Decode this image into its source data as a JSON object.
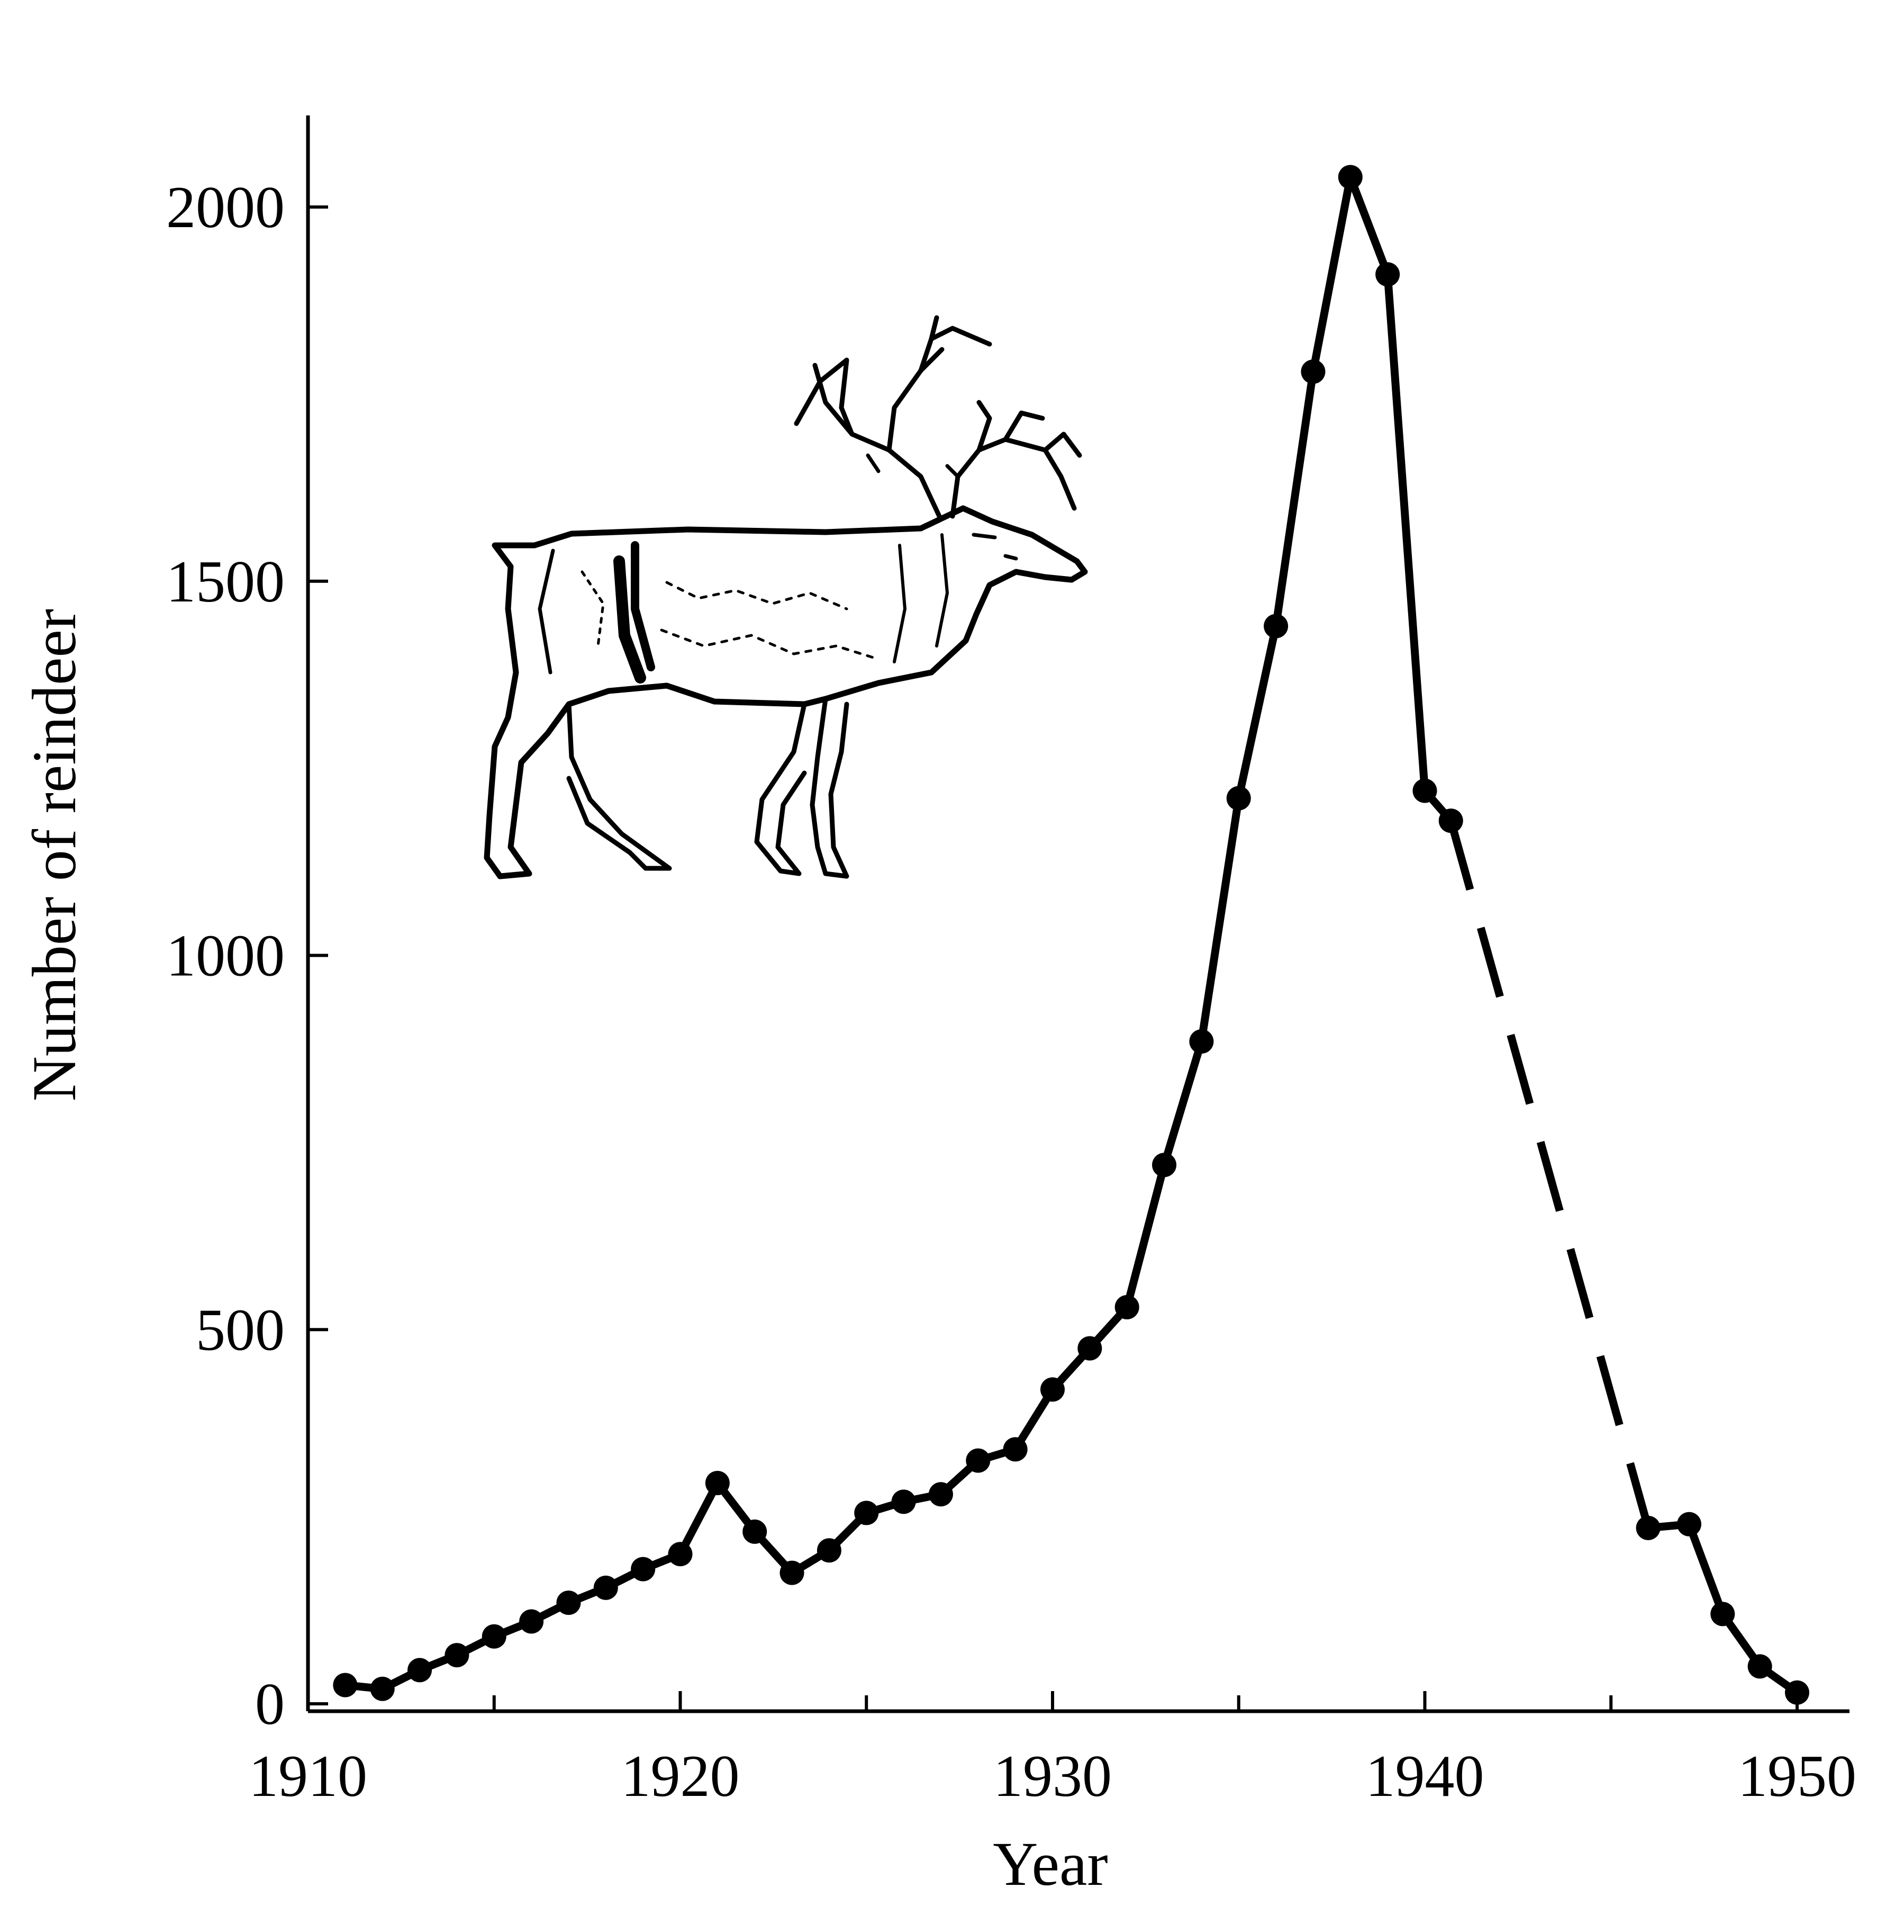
{
  "chart_data": {
    "type": "line",
    "title": "",
    "xlabel": "Year",
    "ylabel": "Number of reindeer",
    "xlim": [
      1910,
      1951
    ],
    "ylim": [
      0,
      2100
    ],
    "xticks": [
      1910,
      1920,
      1930,
      1940,
      1950
    ],
    "yticks": [
      0,
      500,
      1000,
      1500,
      2000
    ],
    "minor_xticks": [
      1915,
      1925,
      1935,
      1945
    ],
    "grid": false,
    "legend": "none",
    "line_color": "#000000",
    "series": [
      {
        "style": "solid",
        "points": [
          [
            1911,
            25
          ],
          [
            1912,
            20
          ],
          [
            1913,
            45
          ],
          [
            1914,
            65
          ],
          [
            1915,
            90
          ],
          [
            1916,
            110
          ],
          [
            1917,
            135
          ],
          [
            1918,
            155
          ],
          [
            1919,
            180
          ],
          [
            1920,
            200
          ],
          [
            1921,
            295
          ],
          [
            1922,
            230
          ],
          [
            1923,
            175
          ],
          [
            1924,
            205
          ],
          [
            1925,
            255
          ],
          [
            1926,
            270
          ],
          [
            1927,
            280
          ],
          [
            1928,
            325
          ],
          [
            1929,
            340
          ],
          [
            1930,
            420
          ],
          [
            1931,
            475
          ],
          [
            1932,
            530
          ],
          [
            1933,
            720
          ],
          [
            1934,
            885
          ],
          [
            1935,
            1210
          ],
          [
            1936,
            1440
          ],
          [
            1937,
            1780
          ],
          [
            1938,
            2040
          ],
          [
            1939,
            1910
          ],
          [
            1940,
            1220
          ],
          [
            1940.7,
            1180
          ]
        ]
      },
      {
        "style": "dashed",
        "points": [
          [
            1940.7,
            1180
          ],
          [
            1946,
            235
          ]
        ]
      },
      {
        "style": "solid",
        "points": [
          [
            1946,
            235
          ],
          [
            1947.1,
            240
          ],
          [
            1948,
            120
          ],
          [
            1949,
            50
          ],
          [
            1950,
            15
          ]
        ]
      }
    ],
    "illustration": "reindeer-drawing"
  }
}
